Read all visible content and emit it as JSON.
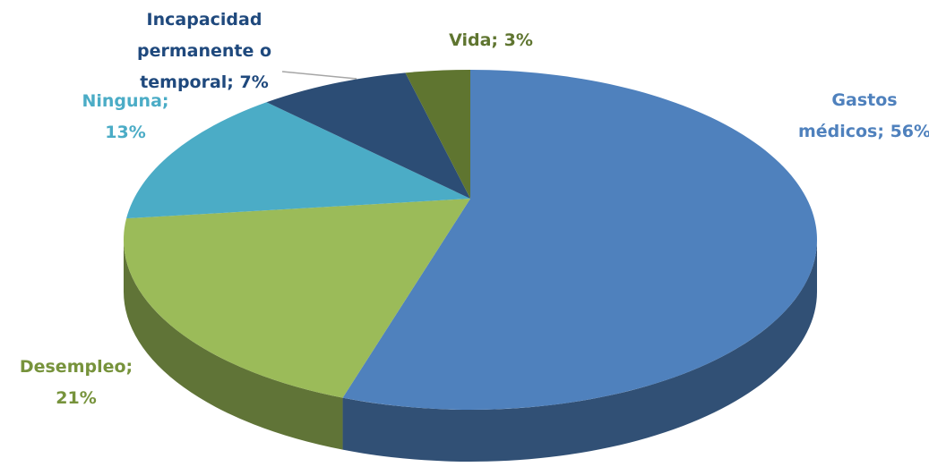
{
  "chart_data": {
    "type": "pie",
    "values": [
      56,
      21,
      13,
      7,
      3
    ],
    "value_labels": [
      "Gastos médicos; 56%",
      "Desempleo; 21%",
      "Ninguna; 13%",
      "Incapacidad permanente o temporal; 7%",
      "Vida; 3%"
    ],
    "colors": [
      "#4f81bd",
      "#9bbb59",
      "#4bacc6",
      "#2c4d75",
      "#5f7530"
    ],
    "label_colors": [
      "#4f81bd",
      "#77933c",
      "#4bacc6",
      "#1f497d",
      "#5f7530"
    ]
  }
}
